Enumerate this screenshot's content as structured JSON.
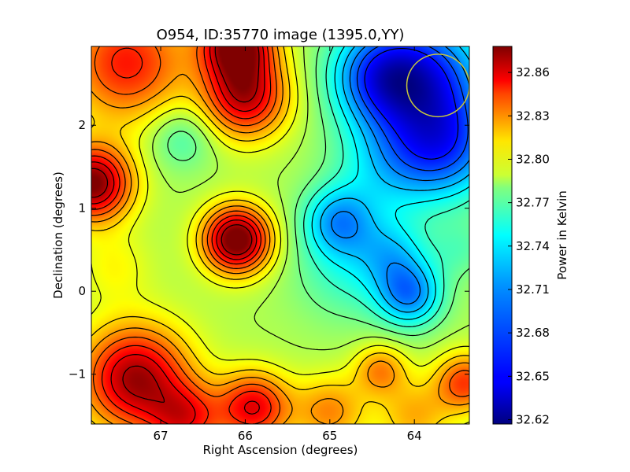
{
  "chart_data": {
    "type": "heatmap",
    "title": "O954, ID:35770 image (1395.0,YY)",
    "xlabel": "Right Ascension (degrees)",
    "ylabel": "Declination (degrees)",
    "xlim": [
      67.82,
      63.35
    ],
    "ylim": [
      -1.6,
      2.95
    ],
    "x_inverted": true,
    "x_ticks": [
      {
        "value": 67,
        "label": "67"
      },
      {
        "value": 66,
        "label": "66"
      },
      {
        "value": 65,
        "label": "65"
      },
      {
        "value": 64,
        "label": "64"
      }
    ],
    "y_ticks": [
      {
        "value": -1,
        "label": "−1"
      },
      {
        "value": 0,
        "label": "0"
      },
      {
        "value": 1,
        "label": "1"
      },
      {
        "value": 2,
        "label": "2"
      }
    ],
    "colorbar": {
      "label": "Power in Kelvin",
      "range": [
        32.617,
        32.878
      ],
      "colormap": "jet",
      "ticks": [
        {
          "value": 32.86,
          "label": "32.86"
        },
        {
          "value": 32.83,
          "label": "32.83"
        },
        {
          "value": 32.8,
          "label": "32.80"
        },
        {
          "value": 32.77,
          "label": "32.77"
        },
        {
          "value": 32.74,
          "label": "32.74"
        },
        {
          "value": 32.71,
          "label": "32.71"
        },
        {
          "value": 32.68,
          "label": "32.68"
        },
        {
          "value": 32.65,
          "label": "32.65"
        },
        {
          "value": 32.62,
          "label": "32.62"
        }
      ]
    },
    "baseline": 32.76,
    "features": [
      {
        "ra": 67.8,
        "dec": 1.3,
        "amp": 0.12,
        "sigma": 0.32
      },
      {
        "ra": 66.1,
        "dec": 0.62,
        "amp": 0.13,
        "sigma": 0.28
      },
      {
        "ra": 66.0,
        "dec": 2.35,
        "amp": 0.1,
        "sigma": 0.35
      },
      {
        "ra": 66.1,
        "dec": 3.0,
        "amp": 0.12,
        "sigma": 0.3
      },
      {
        "ra": 67.4,
        "dec": 2.75,
        "amp": 0.08,
        "sigma": 0.5
      },
      {
        "ra": 67.3,
        "dec": -1.05,
        "amp": 0.11,
        "sigma": 0.45
      },
      {
        "ra": 65.9,
        "dec": -1.4,
        "amp": 0.09,
        "sigma": 0.3
      },
      {
        "ra": 66.7,
        "dec": -1.55,
        "amp": 0.07,
        "sigma": 0.3
      },
      {
        "ra": 64.4,
        "dec": -0.95,
        "amp": 0.05,
        "sigma": 0.22
      },
      {
        "ra": 63.4,
        "dec": -1.1,
        "amp": 0.07,
        "sigma": 0.25
      },
      {
        "ra": 64.0,
        "dec": -1.5,
        "amp": 0.04,
        "sigma": 0.3
      },
      {
        "ra": 65.0,
        "dec": -1.45,
        "amp": 0.05,
        "sigma": 0.3
      },
      {
        "ra": 67.55,
        "dec": 0.3,
        "amp": 0.02,
        "sigma": 0.3
      },
      {
        "ra": 63.9,
        "dec": 2.55,
        "amp": -0.1,
        "sigma": 0.55
      },
      {
        "ra": 64.45,
        "dec": 2.6,
        "amp": -0.06,
        "sigma": 0.4
      },
      {
        "ra": 63.6,
        "dec": 1.7,
        "amp": -0.07,
        "sigma": 0.45
      },
      {
        "ra": 64.3,
        "dec": 1.5,
        "amp": -0.04,
        "sigma": 0.45
      },
      {
        "ra": 64.9,
        "dec": 0.85,
        "amp": -0.06,
        "sigma": 0.3
      },
      {
        "ra": 64.05,
        "dec": -0.05,
        "amp": -0.07,
        "sigma": 0.28
      },
      {
        "ra": 64.25,
        "dec": 0.45,
        "amp": -0.04,
        "sigma": 0.3
      },
      {
        "ra": 64.8,
        "dec": 0.25,
        "amp": -0.03,
        "sigma": 0.45
      },
      {
        "ra": 63.45,
        "dec": 0.5,
        "amp": -0.02,
        "sigma": 0.25
      },
      {
        "ra": 66.75,
        "dec": 1.85,
        "amp": -0.03,
        "sigma": 0.28
      }
    ],
    "circle": {
      "ra": 63.72,
      "dec": 2.48,
      "radius_deg": 0.37,
      "color": "#c8c83c"
    },
    "contour_color": "#000000",
    "contour_levels": [
      32.655,
      32.67,
      32.685,
      32.7,
      32.715,
      32.73,
      32.745,
      32.76,
      32.775,
      32.79,
      32.805,
      32.82,
      32.835,
      32.85,
      32.865
    ]
  }
}
